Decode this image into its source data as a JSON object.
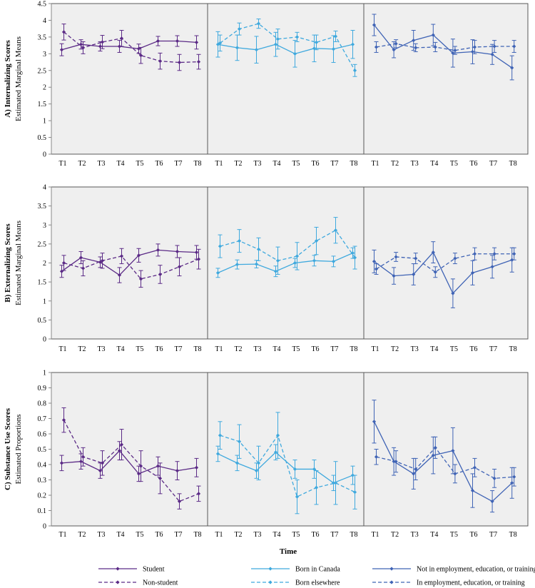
{
  "chart_data": {
    "type": "line",
    "xlabel": "Time",
    "x": [
      "T1",
      "T2",
      "T3",
      "T4",
      "T5",
      "T6",
      "T7",
      "T8"
    ],
    "columns": [
      {
        "name": "student_status",
        "color": "#5b2a86",
        "series_names": [
          "Student",
          "Non-student"
        ]
      },
      {
        "name": "birthplace",
        "color": "#3fa9de",
        "series_names": [
          "Born in Canada",
          "Born elsewhere"
        ]
      },
      {
        "name": "employment",
        "color": "#3f63b5",
        "series_names": [
          "Not in employment, education, or training",
          "In employment, education, or training"
        ]
      }
    ],
    "rows": [
      {
        "row_label": "A) Internalizing Scores",
        "ylabel": "Estimated Marginal Means",
        "ylim": [
          0,
          4.5
        ],
        "yticks": [
          "0",
          "0.5",
          "1",
          "1.5",
          "2",
          "2.5",
          "3",
          "3.5",
          "4",
          "4.5"
        ],
        "ytick_values": [
          0,
          0.5,
          1,
          1.5,
          2,
          2.5,
          3,
          3.5,
          4,
          4.5
        ],
        "panels": [
          {
            "series": [
              {
                "name": "Student",
                "dashed": false,
                "values": [
                  3.12,
                  3.28,
                  3.22,
                  3.22,
                  3.15,
                  3.38,
                  3.38,
                  3.34
                ],
                "err": [
                  0.18,
                  0.14,
                  0.14,
                  0.18,
                  0.14,
                  0.14,
                  0.16,
                  0.2
                ]
              },
              {
                "name": "Non-student",
                "dashed": true,
                "values": [
                  3.65,
                  3.18,
                  3.35,
                  3.46,
                  2.95,
                  2.78,
                  2.74,
                  2.76
                ],
                "err": [
                  0.24,
                  0.18,
                  0.2,
                  0.24,
                  0.24,
                  0.24,
                  0.24,
                  0.22
                ]
              }
            ]
          },
          {
            "series": [
              {
                "name": "Born in Canada",
                "dashed": false,
                "values": [
                  3.28,
                  3.18,
                  3.12,
                  3.28,
                  3.0,
                  3.16,
                  3.14,
                  3.28
                ],
                "err": [
                  0.38,
                  0.38,
                  0.4,
                  0.36,
                  0.4,
                  0.4,
                  0.4,
                  0.42
                ]
              },
              {
                "name": "Born elsewhere",
                "dashed": true,
                "values": [
                  3.32,
                  3.74,
                  3.9,
                  3.44,
                  3.5,
                  3.34,
                  3.52,
                  2.5
                ],
                "err": [
                  0.24,
                  0.18,
                  0.14,
                  0.3,
                  0.14,
                  0.22,
                  0.16,
                  0.18
                ]
              }
            ]
          },
          {
            "series": [
              {
                "name": "Not in employment, education, or training",
                "dashed": false,
                "values": [
                  3.86,
                  3.12,
                  3.4,
                  3.56,
                  3.02,
                  3.06,
                  2.98,
                  2.58
                ],
                "err": [
                  0.32,
                  0.24,
                  0.3,
                  0.32,
                  0.42,
                  0.36,
                  0.3,
                  0.36
                ]
              },
              {
                "name": "In employment, education, or training",
                "dashed": true,
                "values": [
                  3.2,
                  3.3,
                  3.18,
                  3.2,
                  3.1,
                  3.2,
                  3.22,
                  3.22
                ],
                "err": [
                  0.16,
                  0.12,
                  0.12,
                  0.14,
                  0.12,
                  0.2,
                  0.18,
                  0.18
                ]
              }
            ]
          }
        ]
      },
      {
        "row_label": "B) Externalizing Scores",
        "ylabel": "Estimated Marginal Means",
        "ylim": [
          0,
          4
        ],
        "yticks": [
          "0",
          "0.5",
          "1",
          "1.5",
          "2",
          "2.5",
          "3",
          "3.5",
          "4"
        ],
        "ytick_values": [
          0,
          0.5,
          1,
          1.5,
          2,
          2.5,
          3,
          3.5,
          4
        ],
        "panels": [
          {
            "series": [
              {
                "name": "Student",
                "dashed": false,
                "values": [
                  1.78,
                  2.14,
                  2.02,
                  1.68,
                  2.2,
                  2.34,
                  2.3,
                  2.28
                ],
                "err": [
                  0.16,
                  0.16,
                  0.14,
                  0.2,
                  0.18,
                  0.16,
                  0.16,
                  0.18
                ]
              },
              {
                "name": "Non-student",
                "dashed": true,
                "values": [
                  2.0,
                  1.86,
                  2.06,
                  2.18,
                  1.58,
                  1.7,
                  1.9,
                  2.1
                ],
                "err": [
                  0.2,
                  0.2,
                  0.2,
                  0.2,
                  0.22,
                  0.24,
                  0.24,
                  0.26
                ]
              }
            ]
          },
          {
            "series": [
              {
                "name": "Born in Canada",
                "dashed": false,
                "values": [
                  1.74,
                  1.96,
                  1.97,
                  1.78,
                  2.0,
                  2.06,
                  2.04,
                  2.26
                ],
                "err": [
                  0.12,
                  0.12,
                  0.1,
                  0.14,
                  0.12,
                  0.14,
                  0.14,
                  0.14
                ]
              },
              {
                "name": "Born elsewhere",
                "dashed": true,
                "values": [
                  2.44,
                  2.58,
                  2.36,
                  2.06,
                  2.18,
                  2.58,
                  2.86,
                  2.14
                ],
                "err": [
                  0.3,
                  0.3,
                  0.3,
                  0.36,
                  0.36,
                  0.36,
                  0.34,
                  0.3
                ]
              }
            ]
          },
          {
            "series": [
              {
                "name": "Not in employment, education, or training",
                "dashed": false,
                "values": [
                  2.04,
                  1.66,
                  1.7,
                  2.28,
                  1.2,
                  1.74,
                  1.9,
                  2.08
                ],
                "err": [
                  0.3,
                  0.22,
                  0.28,
                  0.28,
                  0.38,
                  0.32,
                  0.3,
                  0.32
                ]
              },
              {
                "name": "In employment, education, or training",
                "dashed": true,
                "values": [
                  1.84,
                  2.16,
                  2.12,
                  1.76,
                  2.12,
                  2.24,
                  2.24,
                  2.24
                ],
                "err": [
                  0.14,
                  0.12,
                  0.14,
                  0.14,
                  0.14,
                  0.16,
                  0.16,
                  0.16
                ]
              }
            ]
          }
        ]
      },
      {
        "row_label": "C) Substance Use Scores",
        "ylabel": "Estimated Proportions",
        "ylim": [
          0,
          1
        ],
        "yticks": [
          "0",
          "0.1",
          "0.2",
          "0.3",
          "0.4",
          "0.5",
          "0.6",
          "0.7",
          "0.8",
          "0.9",
          "1"
        ],
        "ytick_values": [
          0,
          0.1,
          0.2,
          0.3,
          0.4,
          0.5,
          0.6,
          0.7,
          0.8,
          0.9,
          1
        ],
        "panels": [
          {
            "series": [
              {
                "name": "Student",
                "dashed": false,
                "values": [
                  0.41,
                  0.42,
                  0.36,
                  0.49,
                  0.34,
                  0.39,
                  0.36,
                  0.38
                ],
                "err": [
                  0.05,
                  0.05,
                  0.05,
                  0.06,
                  0.05,
                  0.06,
                  0.06,
                  0.06
                ]
              },
              {
                "name": "Non-student",
                "dashed": true,
                "values": [
                  0.69,
                  0.45,
                  0.41,
                  0.53,
                  0.39,
                  0.31,
                  0.16,
                  0.21
                ],
                "err": [
                  0.08,
                  0.06,
                  0.08,
                  0.1,
                  0.1,
                  0.1,
                  0.05,
                  0.05
                ]
              }
            ]
          },
          {
            "series": [
              {
                "name": "Born in Canada",
                "dashed": false,
                "values": [
                  0.47,
                  0.41,
                  0.36,
                  0.48,
                  0.37,
                  0.37,
                  0.28,
                  0.33
                ],
                "err": [
                  0.05,
                  0.05,
                  0.05,
                  0.05,
                  0.06,
                  0.06,
                  0.05,
                  0.06
                ]
              },
              {
                "name": "Born elsewhere",
                "dashed": true,
                "values": [
                  0.59,
                  0.55,
                  0.41,
                  0.59,
                  0.19,
                  0.25,
                  0.28,
                  0.22
                ],
                "err": [
                  0.09,
                  0.11,
                  0.11,
                  0.15,
                  0.11,
                  0.11,
                  0.14,
                  0.11
                ]
              }
            ]
          },
          {
            "series": [
              {
                "name": "Not in employment, education, or training",
                "dashed": false,
                "values": [
                  0.68,
                  0.42,
                  0.34,
                  0.46,
                  0.49,
                  0.23,
                  0.16,
                  0.28
                ],
                "err": [
                  0.14,
                  0.09,
                  0.1,
                  0.12,
                  0.15,
                  0.11,
                  0.07,
                  0.1
                ]
              },
              {
                "name": "In employment, education, or training",
                "dashed": true,
                "values": [
                  0.45,
                  0.42,
                  0.37,
                  0.51,
                  0.34,
                  0.38,
                  0.31,
                  0.32
                ],
                "err": [
                  0.05,
                  0.07,
                  0.07,
                  0.07,
                  0.06,
                  0.06,
                  0.06,
                  0.06
                ]
              }
            ]
          }
        ]
      }
    ],
    "legend": [
      {
        "label": "Student",
        "color": "#5b2a86",
        "dashed": false
      },
      {
        "label": "Non-student",
        "color": "#5b2a86",
        "dashed": true
      },
      {
        "label": "Born in Canada",
        "color": "#3fa9de",
        "dashed": false
      },
      {
        "label": "Born elsewhere",
        "color": "#3fa9de",
        "dashed": true
      },
      {
        "label": "Not in employment, education, or training",
        "color": "#3f63b5",
        "dashed": false
      },
      {
        "label": "In employment, education, or training",
        "color": "#3f63b5",
        "dashed": true
      }
    ]
  },
  "colors": {
    "panel_bg": "#efefef",
    "frame": "#595959",
    "axis": "#888888"
  }
}
